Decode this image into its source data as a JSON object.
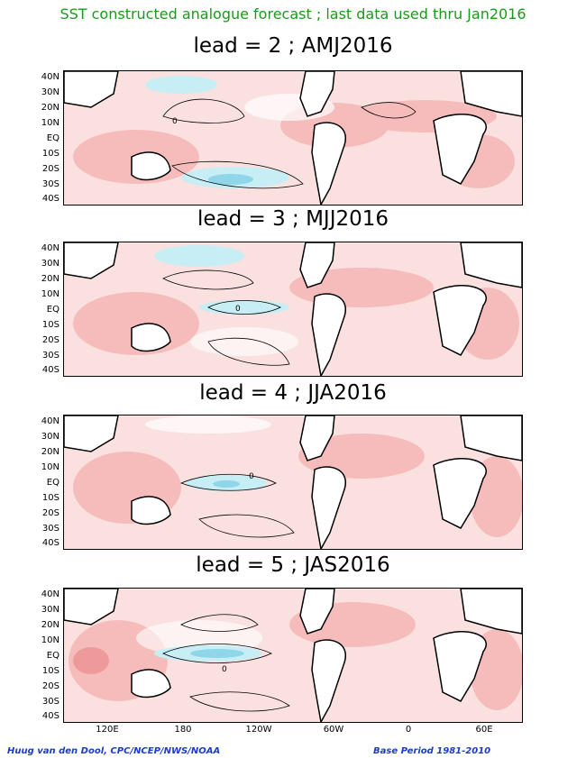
{
  "title": "SST constructed analogue forecast ; last data used thru Jan2016",
  "colors": {
    "title": "#1a9a1a",
    "warm_light": "#fbe0e0",
    "warm_mid": "#f6bcbc",
    "warm_strong": "#ef9a9a",
    "cool_light": "#c8eef5",
    "cool_mid": "#8fd6ea",
    "land": "#ffffff",
    "footer": "#1a3ccc"
  },
  "panels": [
    {
      "title": "lead = 2 ; AMJ2016",
      "contour_label": "0"
    },
    {
      "title": "lead = 3 ; MJJ2016",
      "contour_label": "0"
    },
    {
      "title": "lead = 4 ; JJA2016",
      "contour_label": "0"
    },
    {
      "title": "lead = 5 ; JAS2016",
      "contour_label": "0"
    }
  ],
  "lat_labels": [
    "40N",
    "30N",
    "20N",
    "10N",
    "EQ",
    "10S",
    "20S",
    "30S",
    "40S"
  ],
  "lon_labels": [
    "120E",
    "180",
    "120W",
    "60W",
    "0",
    "60E"
  ],
  "footer_left": "Huug van den Dool, CPC/NCEP/NWS/NOAA",
  "footer_right": "Base Period 1981-2010"
}
